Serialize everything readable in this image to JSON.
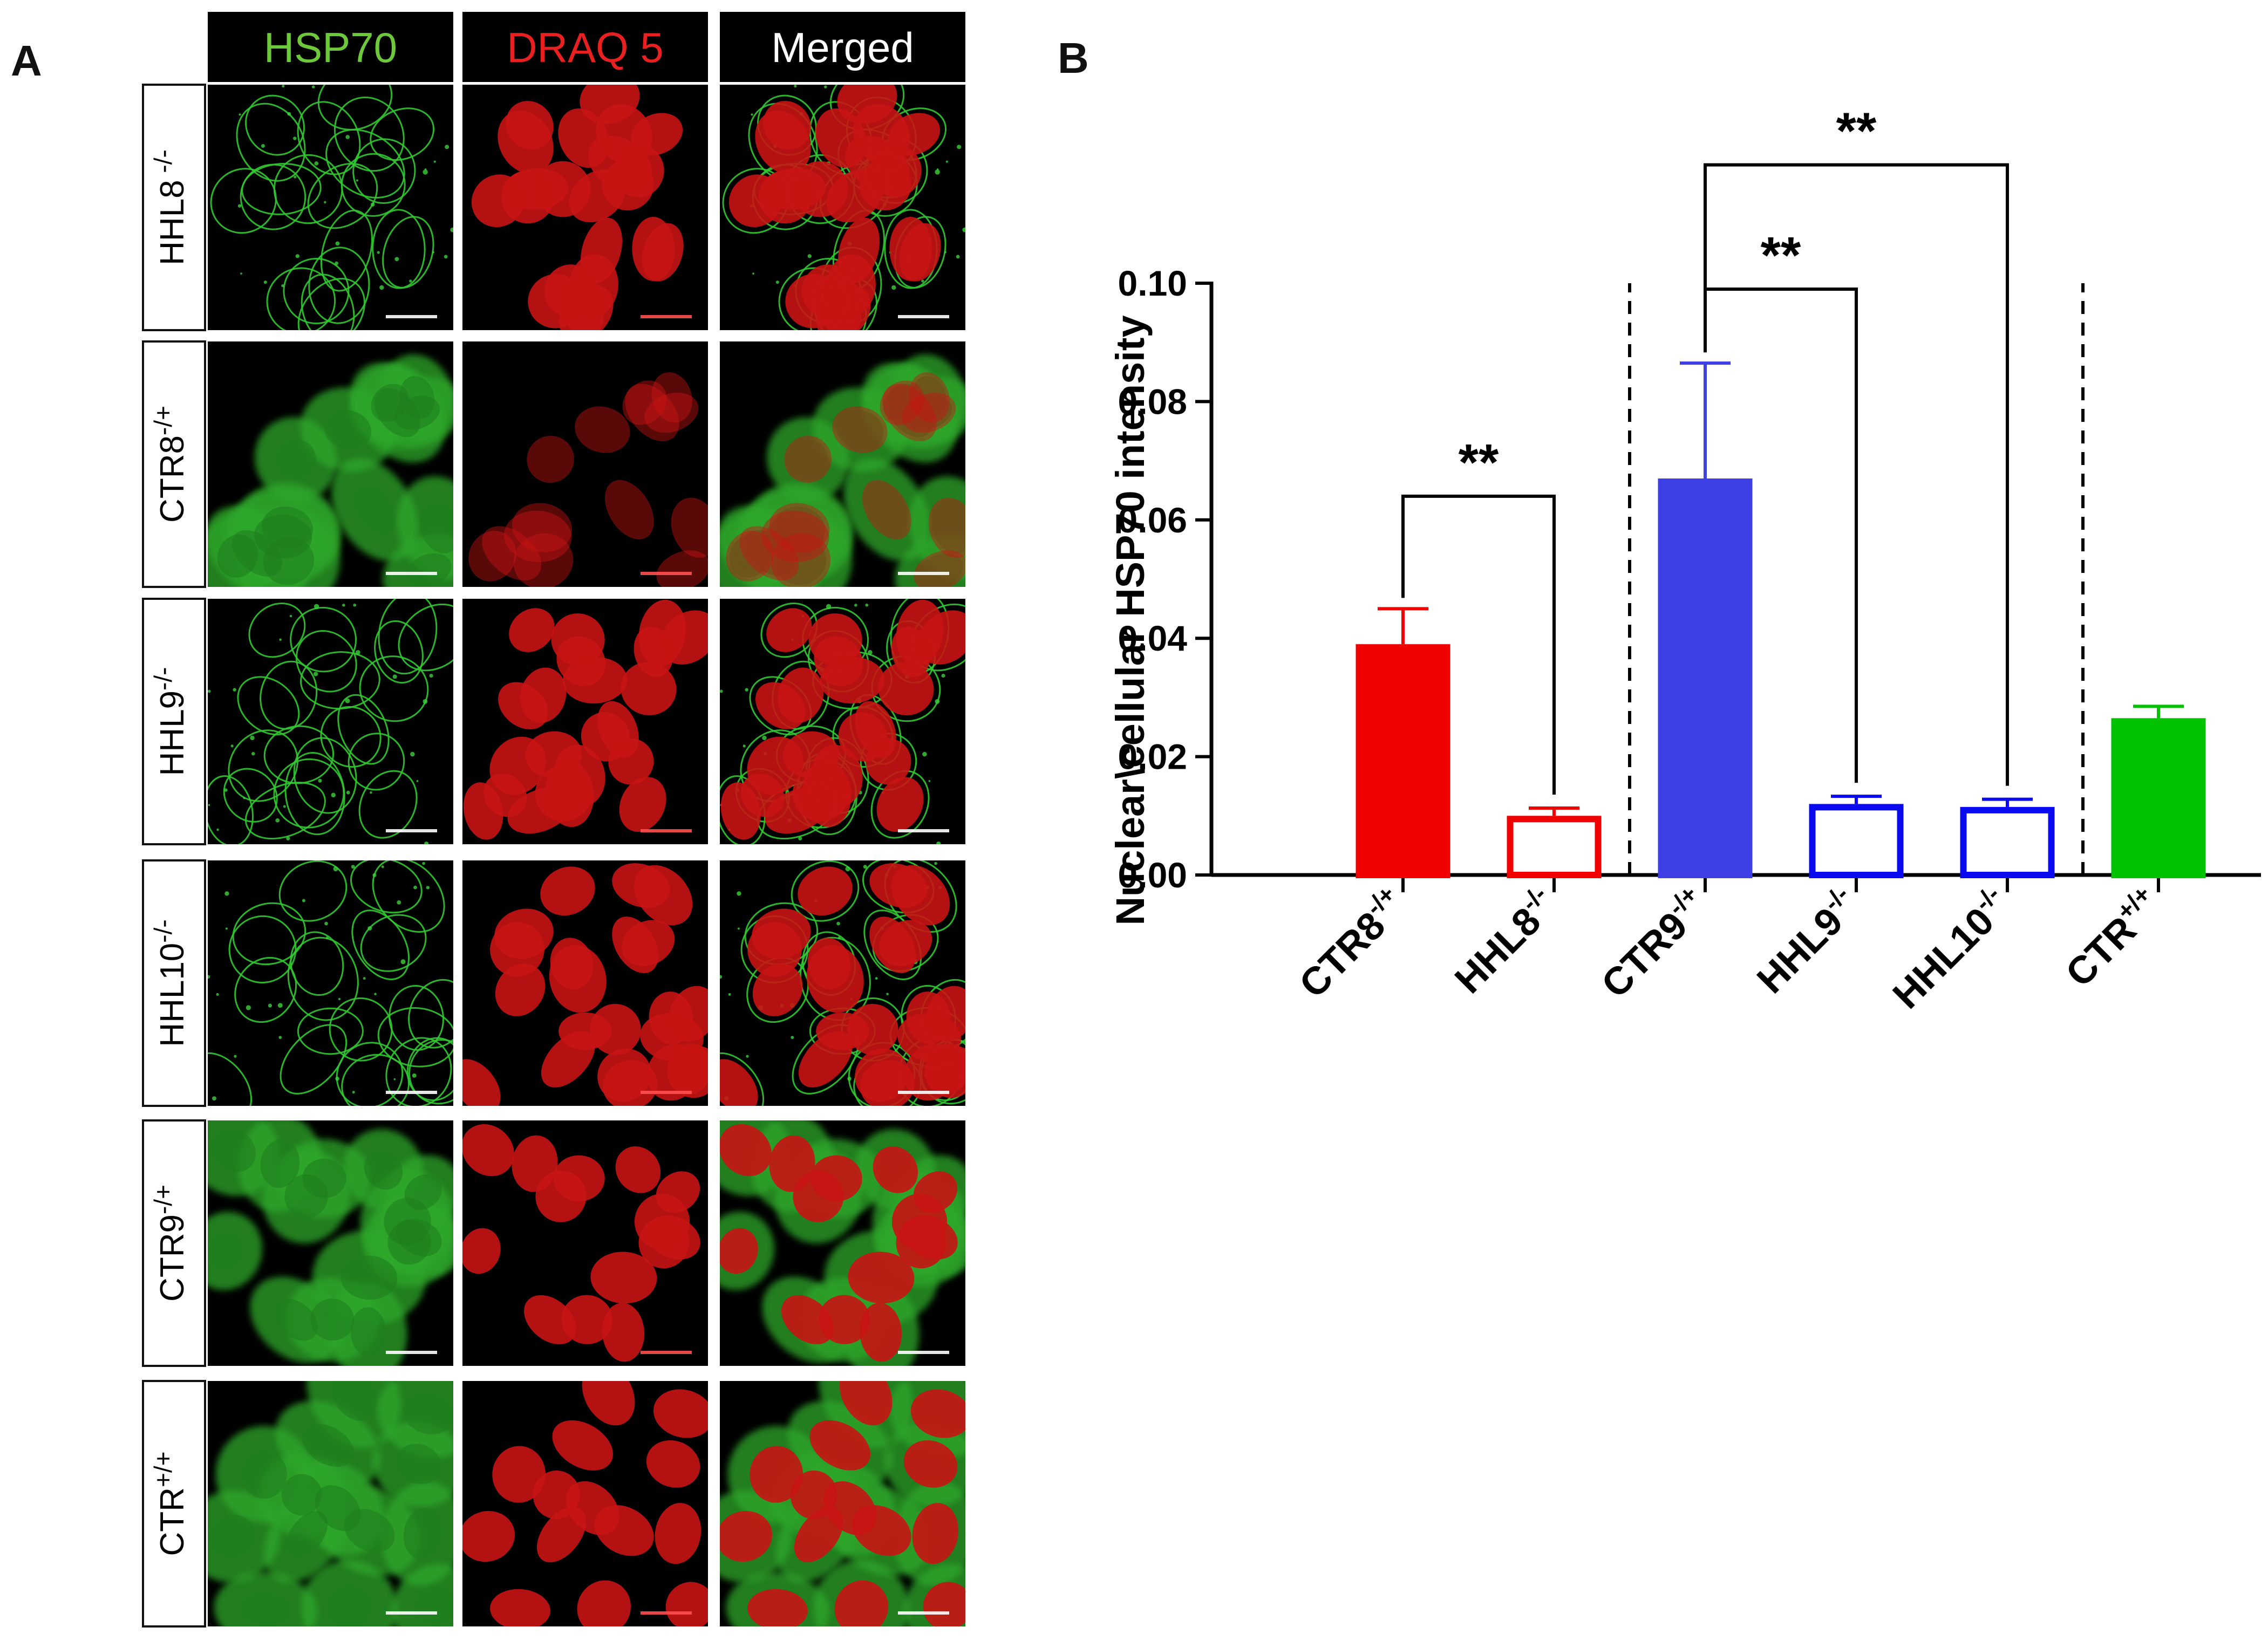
{
  "panel_a": {
    "letter": "A",
    "column_headers": [
      {
        "text": "HSP70",
        "color": "#6ec83c"
      },
      {
        "text": "DRAQ 5",
        "color": "#e82020"
      },
      {
        "text": "Merged",
        "color": "#ffffff"
      }
    ],
    "rows": [
      {
        "base": "HHL8",
        "sup": " -/-",
        "pattern": "ring"
      },
      {
        "base": "CTR8",
        "sup": "-/+",
        "pattern": "diffuse"
      },
      {
        "base": "HHL9",
        "sup": "-/-",
        "pattern": "ring"
      },
      {
        "base": "HHL10",
        "sup": "-/-",
        "pattern": "ring"
      },
      {
        "base": "CTR9",
        "sup": "-/+",
        "pattern": "diffuse"
      },
      {
        "base": "CTR",
        "sup": "+/+",
        "pattern": "diffuse"
      }
    ]
  },
  "chart_data": {
    "panel_letter": "B",
    "type": "bar",
    "ylabel": "Nuclear\\cellular HSP70 intensity",
    "ylim": [
      0,
      0.1
    ],
    "yticks": [
      "0.00",
      "0.02",
      "0.04",
      "0.06",
      "0.08",
      "0.10"
    ],
    "categories": [
      {
        "base": "CTR8",
        "sup": "-/+"
      },
      {
        "base": "HHL8",
        "sup": "-/-"
      },
      {
        "base": "CTR9",
        "sup": "-/+"
      },
      {
        "base": "HHL9",
        "sup": "-/-"
      },
      {
        "base": "HHL10",
        "sup": "-/-"
      },
      {
        "base": "CTR",
        "sup": "+/+"
      }
    ],
    "values": [
      0.039,
      0.01,
      0.067,
      0.012,
      0.0115,
      0.0265
    ],
    "errors": [
      0.006,
      0.0013,
      0.0195,
      0.0013,
      0.0013,
      0.002
    ],
    "colors": [
      "#f00000",
      "#f00000",
      "#3f3fe6",
      "#0a0af0",
      "#0a0af0",
      "#00c200"
    ],
    "filled": [
      true,
      false,
      true,
      false,
      false,
      true
    ],
    "group_separators_after": [
      1,
      4
    ],
    "significance": [
      {
        "from": 0,
        "to": 1,
        "label": "**",
        "y": 0.064
      },
      {
        "from": 2,
        "to": 3,
        "label": "**",
        "y": 0.099
      },
      {
        "from": 2,
        "to": 4,
        "label": "**",
        "y": 0.12
      }
    ]
  }
}
